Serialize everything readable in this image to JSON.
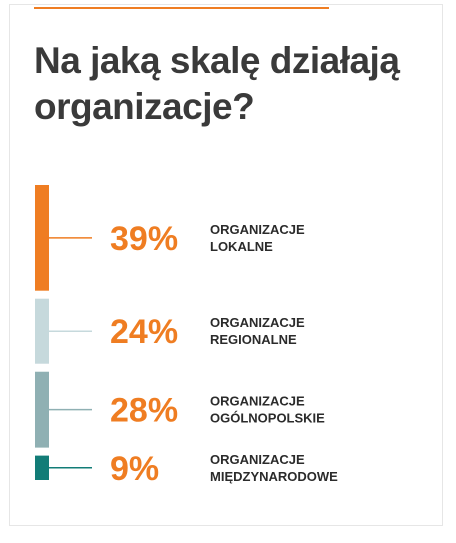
{
  "title": "Na jaką skalę działają organizacje?",
  "colors": {
    "accent": "#ef7d22",
    "title_text": "#3a3a3a",
    "label_text": "#2b2b2b"
  },
  "chart_data": {
    "type": "bar",
    "orientation": "vertical-stacked",
    "title": "Na jaką skalę działają organizacje?",
    "unit": "%",
    "categories": [
      [
        "ORGANIZACJE",
        "LOKALNE"
      ],
      [
        "ORGANIZACJE",
        "REGIONALNE"
      ],
      [
        "ORGANIZACJE",
        "OGÓLNOPOLSKIE"
      ],
      [
        "ORGANIZACJE",
        "MIĘDZYNARODOWE"
      ]
    ],
    "values": [
      39,
      24,
      28,
      9
    ],
    "value_labels": [
      "39%",
      "24%",
      "28%",
      "9%"
    ],
    "bar_colors": [
      "#ef7d22",
      "#c6d9dc",
      "#8fb0b3",
      "#127c77"
    ],
    "value_colors": [
      "#ef7d22",
      "#ef7d22",
      "#ef7d22",
      "#ef7d22"
    ],
    "grid": false,
    "legend": "none"
  }
}
